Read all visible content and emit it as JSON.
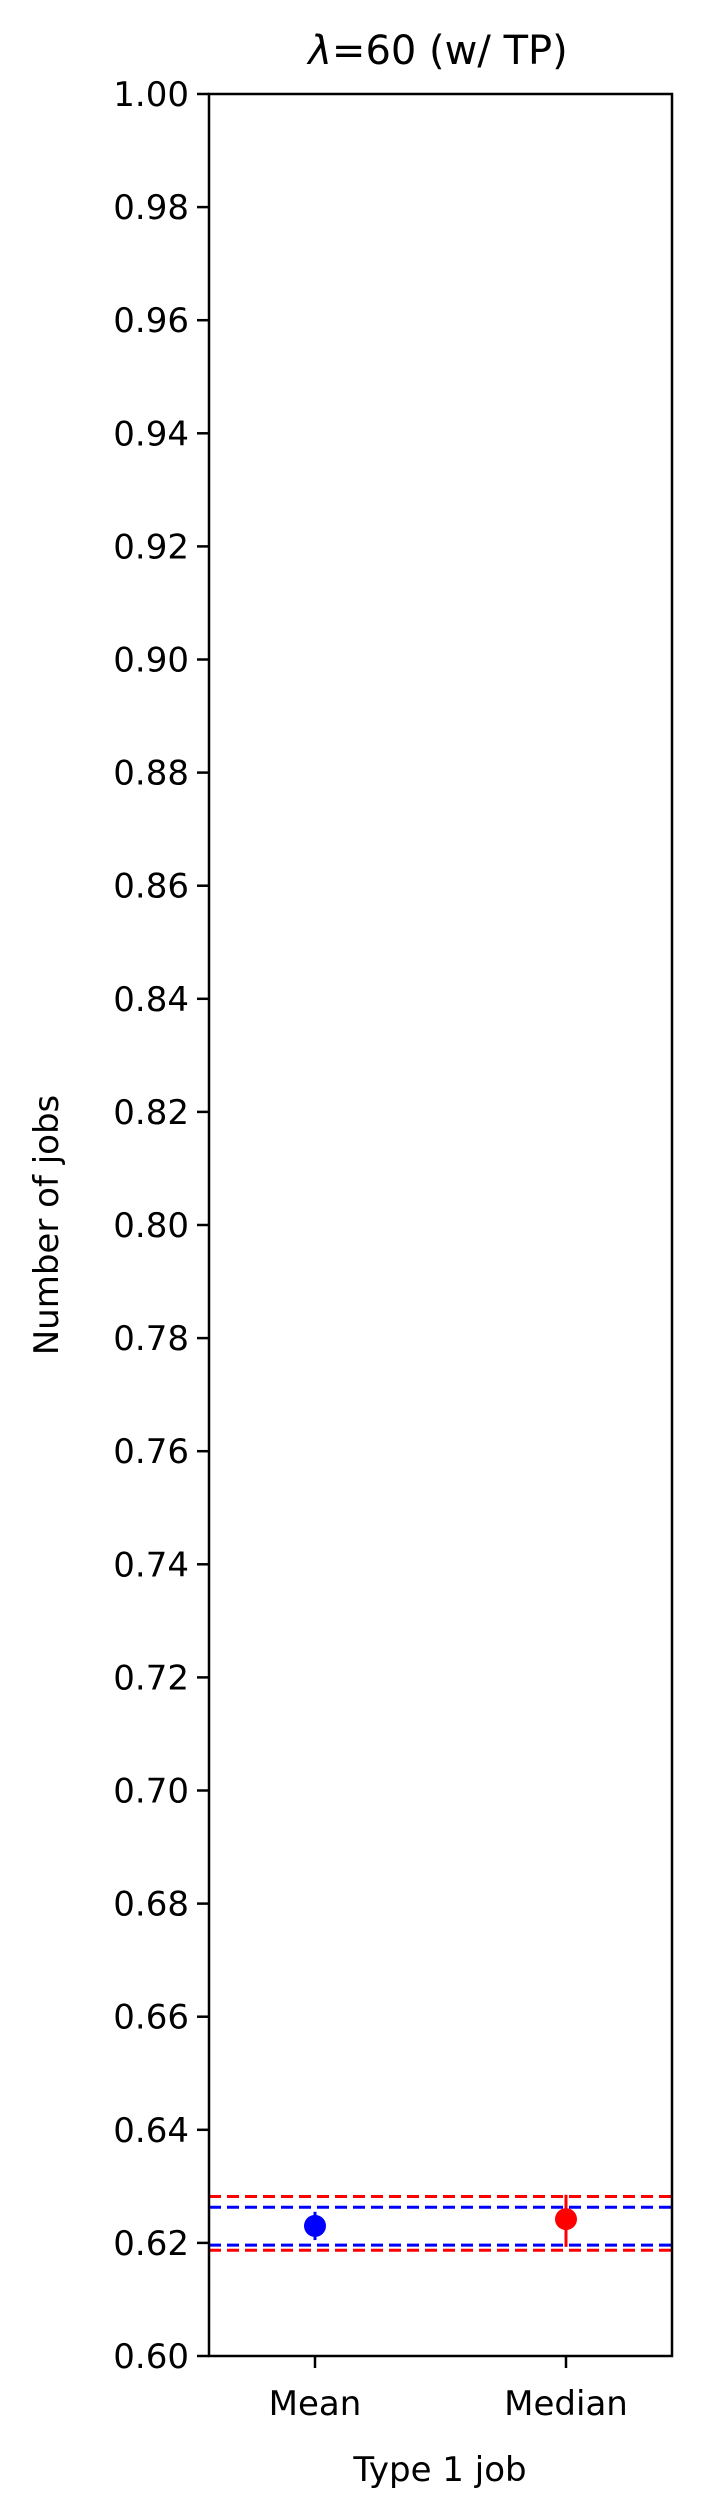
{
  "chart_data": {
    "type": "scatter",
    "title_symbol": "λ",
    "title_rest": "=60 (w/ TP)",
    "xlabel": "Type 1 job",
    "ylabel": "Number of jobs",
    "categories": [
      "Mean",
      "Median"
    ],
    "ylim": [
      0.6,
      1.0
    ],
    "yticks": [
      "0.60",
      "0.62",
      "0.64",
      "0.66",
      "0.68",
      "0.70",
      "0.72",
      "0.74",
      "0.76",
      "0.78",
      "0.80",
      "0.82",
      "0.84",
      "0.86",
      "0.88",
      "0.90",
      "0.92",
      "0.94",
      "0.96",
      "0.98",
      "1.00"
    ],
    "grid": false,
    "series": [
      {
        "color": "#0000ff",
        "category": "Mean",
        "value": 0.623,
        "error_low": 0.6205,
        "error_high": 0.6255,
        "hlines": [
          0.6196,
          0.6263
        ]
      },
      {
        "color": "#ff0000",
        "category": "Median",
        "value": 0.6242,
        "error_low": 0.6193,
        "error_high": 0.6285,
        "hlines": [
          0.6187,
          0.6282
        ]
      }
    ]
  }
}
